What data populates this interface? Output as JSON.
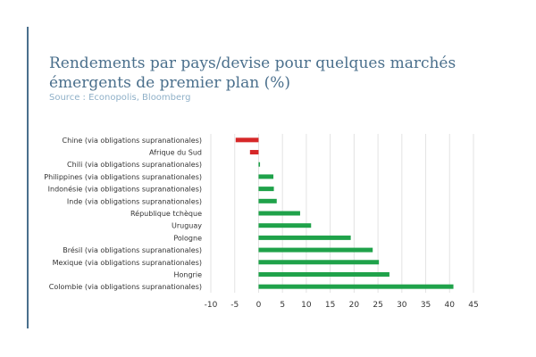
{
  "chart_data": {
    "type": "bar",
    "orientation": "horizontal",
    "title": "Rendements par pays/devise pour quelques marchés émergents de premier plan (%)",
    "subtitle": "Source : Econopolis, Bloomberg",
    "xlabel": "",
    "ylabel": "",
    "xlim": [
      -10,
      45
    ],
    "xticks": [
      "-10",
      "-5",
      "0",
      "5",
      "10",
      "15",
      "20",
      "25",
      "30",
      "35",
      "40",
      "45"
    ],
    "grid": "vertical",
    "categories": [
      "Chine (via obligations supranationales)",
      "Afrique du Sud",
      "Chili (via obligations supranationales)",
      "Philippines (via obligations supranationales)",
      "Indonésie (via obligations supranationales)",
      "Inde (via obligations supranationales)",
      "République tchèque",
      "Uruguay",
      "Pologne",
      "Brésil (via obligations supranationales)",
      "Mexique (via obligations supranationales)",
      "Hongrie",
      "Colombie (via obligations supranationales)"
    ],
    "values": [
      -4.8,
      -1.8,
      0.3,
      3.1,
      3.2,
      3.8,
      8.7,
      11.0,
      19.3,
      23.9,
      25.2,
      27.4,
      40.8
    ],
    "colors": {
      "positive": "#1fa24a",
      "negative": "#d62728"
    }
  },
  "colors": {
    "accent": "#4a6f8c",
    "title": "#4a6f8c",
    "source": "#8fb0c8",
    "grid": "#e3e3e3"
  }
}
